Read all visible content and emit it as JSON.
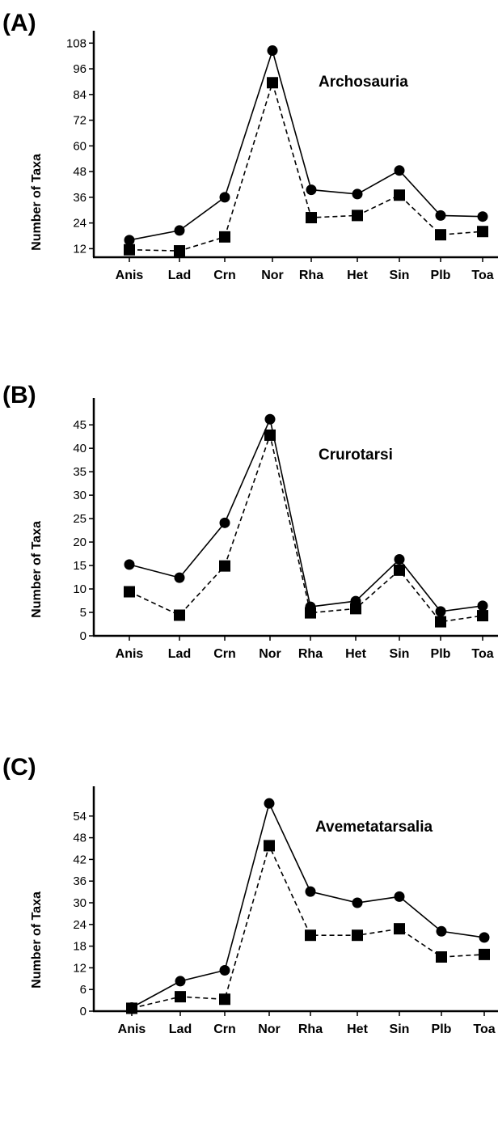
{
  "chart_data": [
    {
      "type": "line",
      "panel_label": "(A)",
      "title": "Archosauria",
      "xlabel": "",
      "ylabel": "Number of Taxa",
      "categories": [
        "Anis",
        "Lad",
        "Crn",
        "Nor",
        "Rha",
        "Het",
        "Sin",
        "Plb",
        "Toa"
      ],
      "ylim": [
        8,
        110
      ],
      "yticks": [
        12,
        24,
        36,
        48,
        60,
        72,
        84,
        96,
        108
      ],
      "grid": false,
      "series": [
        {
          "marker": "circle",
          "line": "solid",
          "values": [
            16,
            20.5,
            36,
            104.5,
            39.5,
            37.5,
            48.5,
            27.5,
            27
          ]
        },
        {
          "marker": "square",
          "line": "dashed",
          "values": [
            11.5,
            11,
            17.5,
            89.5,
            26.5,
            27.5,
            37,
            18.5,
            20
          ]
        }
      ]
    },
    {
      "type": "line",
      "panel_label": "(B)",
      "title": "Crurotarsi",
      "xlabel": "",
      "ylabel": "Number of Taxa",
      "categories": [
        "Anis",
        "Lad",
        "Crn",
        "Nor",
        "Rha",
        "Het",
        "Sin",
        "Plb",
        "Toa"
      ],
      "ylim": [
        0,
        49
      ],
      "yticks": [
        0,
        5,
        10,
        15,
        20,
        25,
        30,
        35,
        40,
        45
      ],
      "grid": false,
      "series": [
        {
          "marker": "circle",
          "line": "solid",
          "values": [
            15.2,
            12.4,
            24.1,
            46.2,
            6.2,
            7.4,
            16.3,
            5.2,
            6.4
          ]
        },
        {
          "marker": "square",
          "line": "dashed",
          "values": [
            9.4,
            4.4,
            14.9,
            42.8,
            4.9,
            5.8,
            14.0,
            3.0,
            4.3
          ]
        }
      ]
    },
    {
      "type": "line",
      "panel_label": "(C)",
      "title": "Avemetatarsalia",
      "xlabel": "",
      "ylabel": "Number of Taxa",
      "categories": [
        "Anis",
        "Lad",
        "Crn",
        "Nor",
        "Rha",
        "Het",
        "Sin",
        "Plb",
        "Toa"
      ],
      "ylim": [
        0,
        60
      ],
      "yticks": [
        0,
        6,
        12,
        18,
        24,
        30,
        36,
        42,
        48,
        54
      ],
      "grid": false,
      "series": [
        {
          "marker": "circle",
          "line": "solid",
          "values": [
            1,
            8.3,
            11.3,
            57.5,
            33.1,
            30,
            31.7,
            22.1,
            20.4
          ]
        },
        {
          "marker": "square",
          "line": "dashed",
          "values": [
            0.8,
            4,
            3.3,
            45.8,
            21,
            21,
            22.8,
            15,
            15.7
          ]
        }
      ]
    }
  ]
}
